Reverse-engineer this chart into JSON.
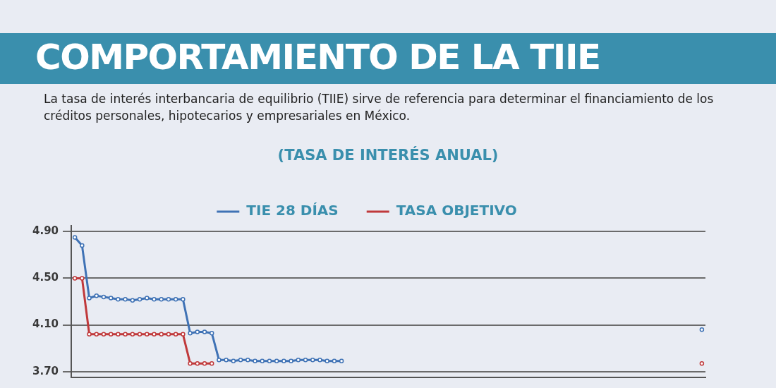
{
  "chart_data": {
    "type": "line",
    "title": "COMPORTAMIENTO DE LA TIIE",
    "subtitle": "La tasa de interés interbancaria de equilibrio (TIIE) sirve de referencia para determinar el financiamiento de los créditos personales, hipotecarios y empresariales en México.",
    "annotations": [
      "(TASA DE INTERÉS ANUAL)"
    ],
    "categories": [
      null,
      null,
      null,
      null,
      null,
      null,
      null,
      null,
      null,
      null,
      null,
      null,
      null,
      null,
      null,
      null,
      null,
      null,
      null,
      null,
      null,
      null,
      null,
      null,
      null,
      null,
      null,
      null,
      null,
      null,
      null,
      null,
      null,
      null,
      null,
      null,
      null,
      null,
      null,
      null,
      null,
      null,
      null,
      null,
      null,
      null,
      null,
      null,
      null,
      null,
      null,
      null,
      null,
      null,
      null,
      null,
      null,
      null,
      null,
      null,
      null,
      null,
      null,
      null,
      null,
      null,
      null,
      null,
      null,
      null,
      null,
      null,
      null,
      null,
      null,
      null,
      null,
      null,
      null,
      null,
      null,
      null,
      null,
      null,
      null,
      null,
      null,
      null
    ],
    "series": [
      {
        "name": "TIE 28 DÍAS",
        "color": "#3f72b5",
        "values": [
          4.85,
          4.78,
          4.33,
          4.35,
          4.34,
          4.33,
          4.32,
          4.32,
          4.31,
          4.32,
          4.33,
          4.32,
          4.32,
          4.32,
          4.32,
          4.32,
          4.03,
          4.04,
          4.04,
          4.03,
          3.8,
          3.8,
          3.79,
          3.8,
          3.8,
          3.79,
          3.79,
          3.79,
          3.79,
          3.79,
          3.79,
          3.8,
          3.8,
          3.8,
          3.8,
          3.79,
          3.79,
          3.79,
          null,
          null,
          null,
          null,
          null,
          null,
          null,
          null,
          null,
          null,
          null,
          null,
          null,
          null,
          null,
          null,
          null,
          null,
          null,
          null,
          null,
          null,
          null,
          null,
          null,
          null,
          null,
          null,
          null,
          null,
          null,
          null,
          null,
          null,
          null,
          null,
          null,
          null,
          null,
          null,
          null,
          null,
          null,
          null,
          null,
          null,
          null,
          null,
          null,
          4.06
        ]
      },
      {
        "name": "TASA OBJETIVO",
        "color": "#c0393b",
        "values": [
          4.5,
          4.5,
          4.02,
          4.02,
          4.02,
          4.02,
          4.02,
          4.02,
          4.02,
          4.02,
          4.02,
          4.02,
          4.02,
          4.02,
          4.02,
          4.02,
          3.77,
          3.77,
          3.77,
          3.77,
          null,
          null,
          null,
          null,
          null,
          null,
          null,
          null,
          null,
          null,
          null,
          null,
          null,
          null,
          null,
          null,
          null,
          null,
          null,
          null,
          null,
          null,
          null,
          null,
          null,
          null,
          null,
          null,
          null,
          null,
          null,
          null,
          null,
          null,
          null,
          null,
          null,
          null,
          null,
          null,
          null,
          null,
          null,
          null,
          null,
          null,
          null,
          null,
          null,
          null,
          null,
          null,
          null,
          null,
          null,
          null,
          null,
          null,
          null,
          null,
          null,
          null,
          null,
          null,
          null,
          null,
          null,
          3.77
        ]
      }
    ],
    "ylim": [
      3.65,
      4.95
    ],
    "yticks": [
      {
        "value": 4.9,
        "label": "4.90"
      },
      {
        "value": 4.5,
        "label": "4.50"
      },
      {
        "value": 4.1,
        "label": "4.10"
      },
      {
        "value": 3.7,
        "label": "3.70"
      }
    ],
    "grid": "y",
    "legend": "top",
    "marker": "circle",
    "line_style": "solid",
    "tick_labels": "y"
  }
}
